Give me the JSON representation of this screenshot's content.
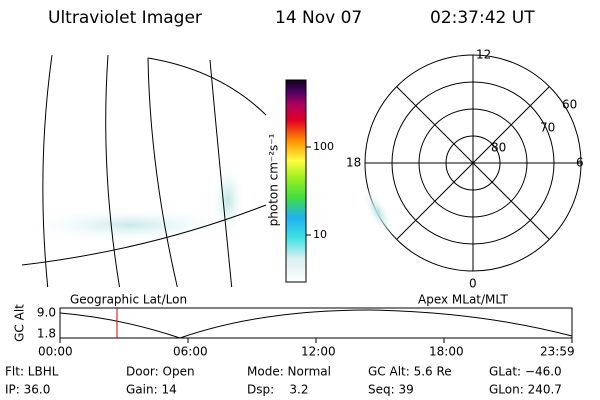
{
  "header": {
    "title": "Ultraviolet Imager",
    "date": "14 Nov 07",
    "time": "02:37:42 UT"
  },
  "colorbar": {
    "label": "photon cm⁻²s⁻¹",
    "ticks": [
      10,
      100
    ]
  },
  "polar": {
    "hour_labels": [
      "12",
      "18",
      "6",
      "0"
    ],
    "lat_labels": [
      "60",
      "70",
      "80"
    ]
  },
  "map_label": "Geographic Lat/Lon",
  "polar_label": "Apex MLat/MLT",
  "altitude": {
    "axis_label": "GC Alt",
    "yticks": [
      "9.0",
      "1.8"
    ],
    "xticks": [
      "00:00",
      "06:00",
      "12:00",
      "18:00",
      "23:59"
    ]
  },
  "info": [
    [
      "Flt: LBHL",
      "Door: Open",
      "Mode: Normal",
      "GC Alt: 5.6 Re",
      "GLat: −46.0"
    ],
    [
      "IP: 36.0",
      "Gain: 14",
      "Dsp:    3.2",
      "Seq: 39",
      "GLon: 240.7"
    ]
  ]
}
